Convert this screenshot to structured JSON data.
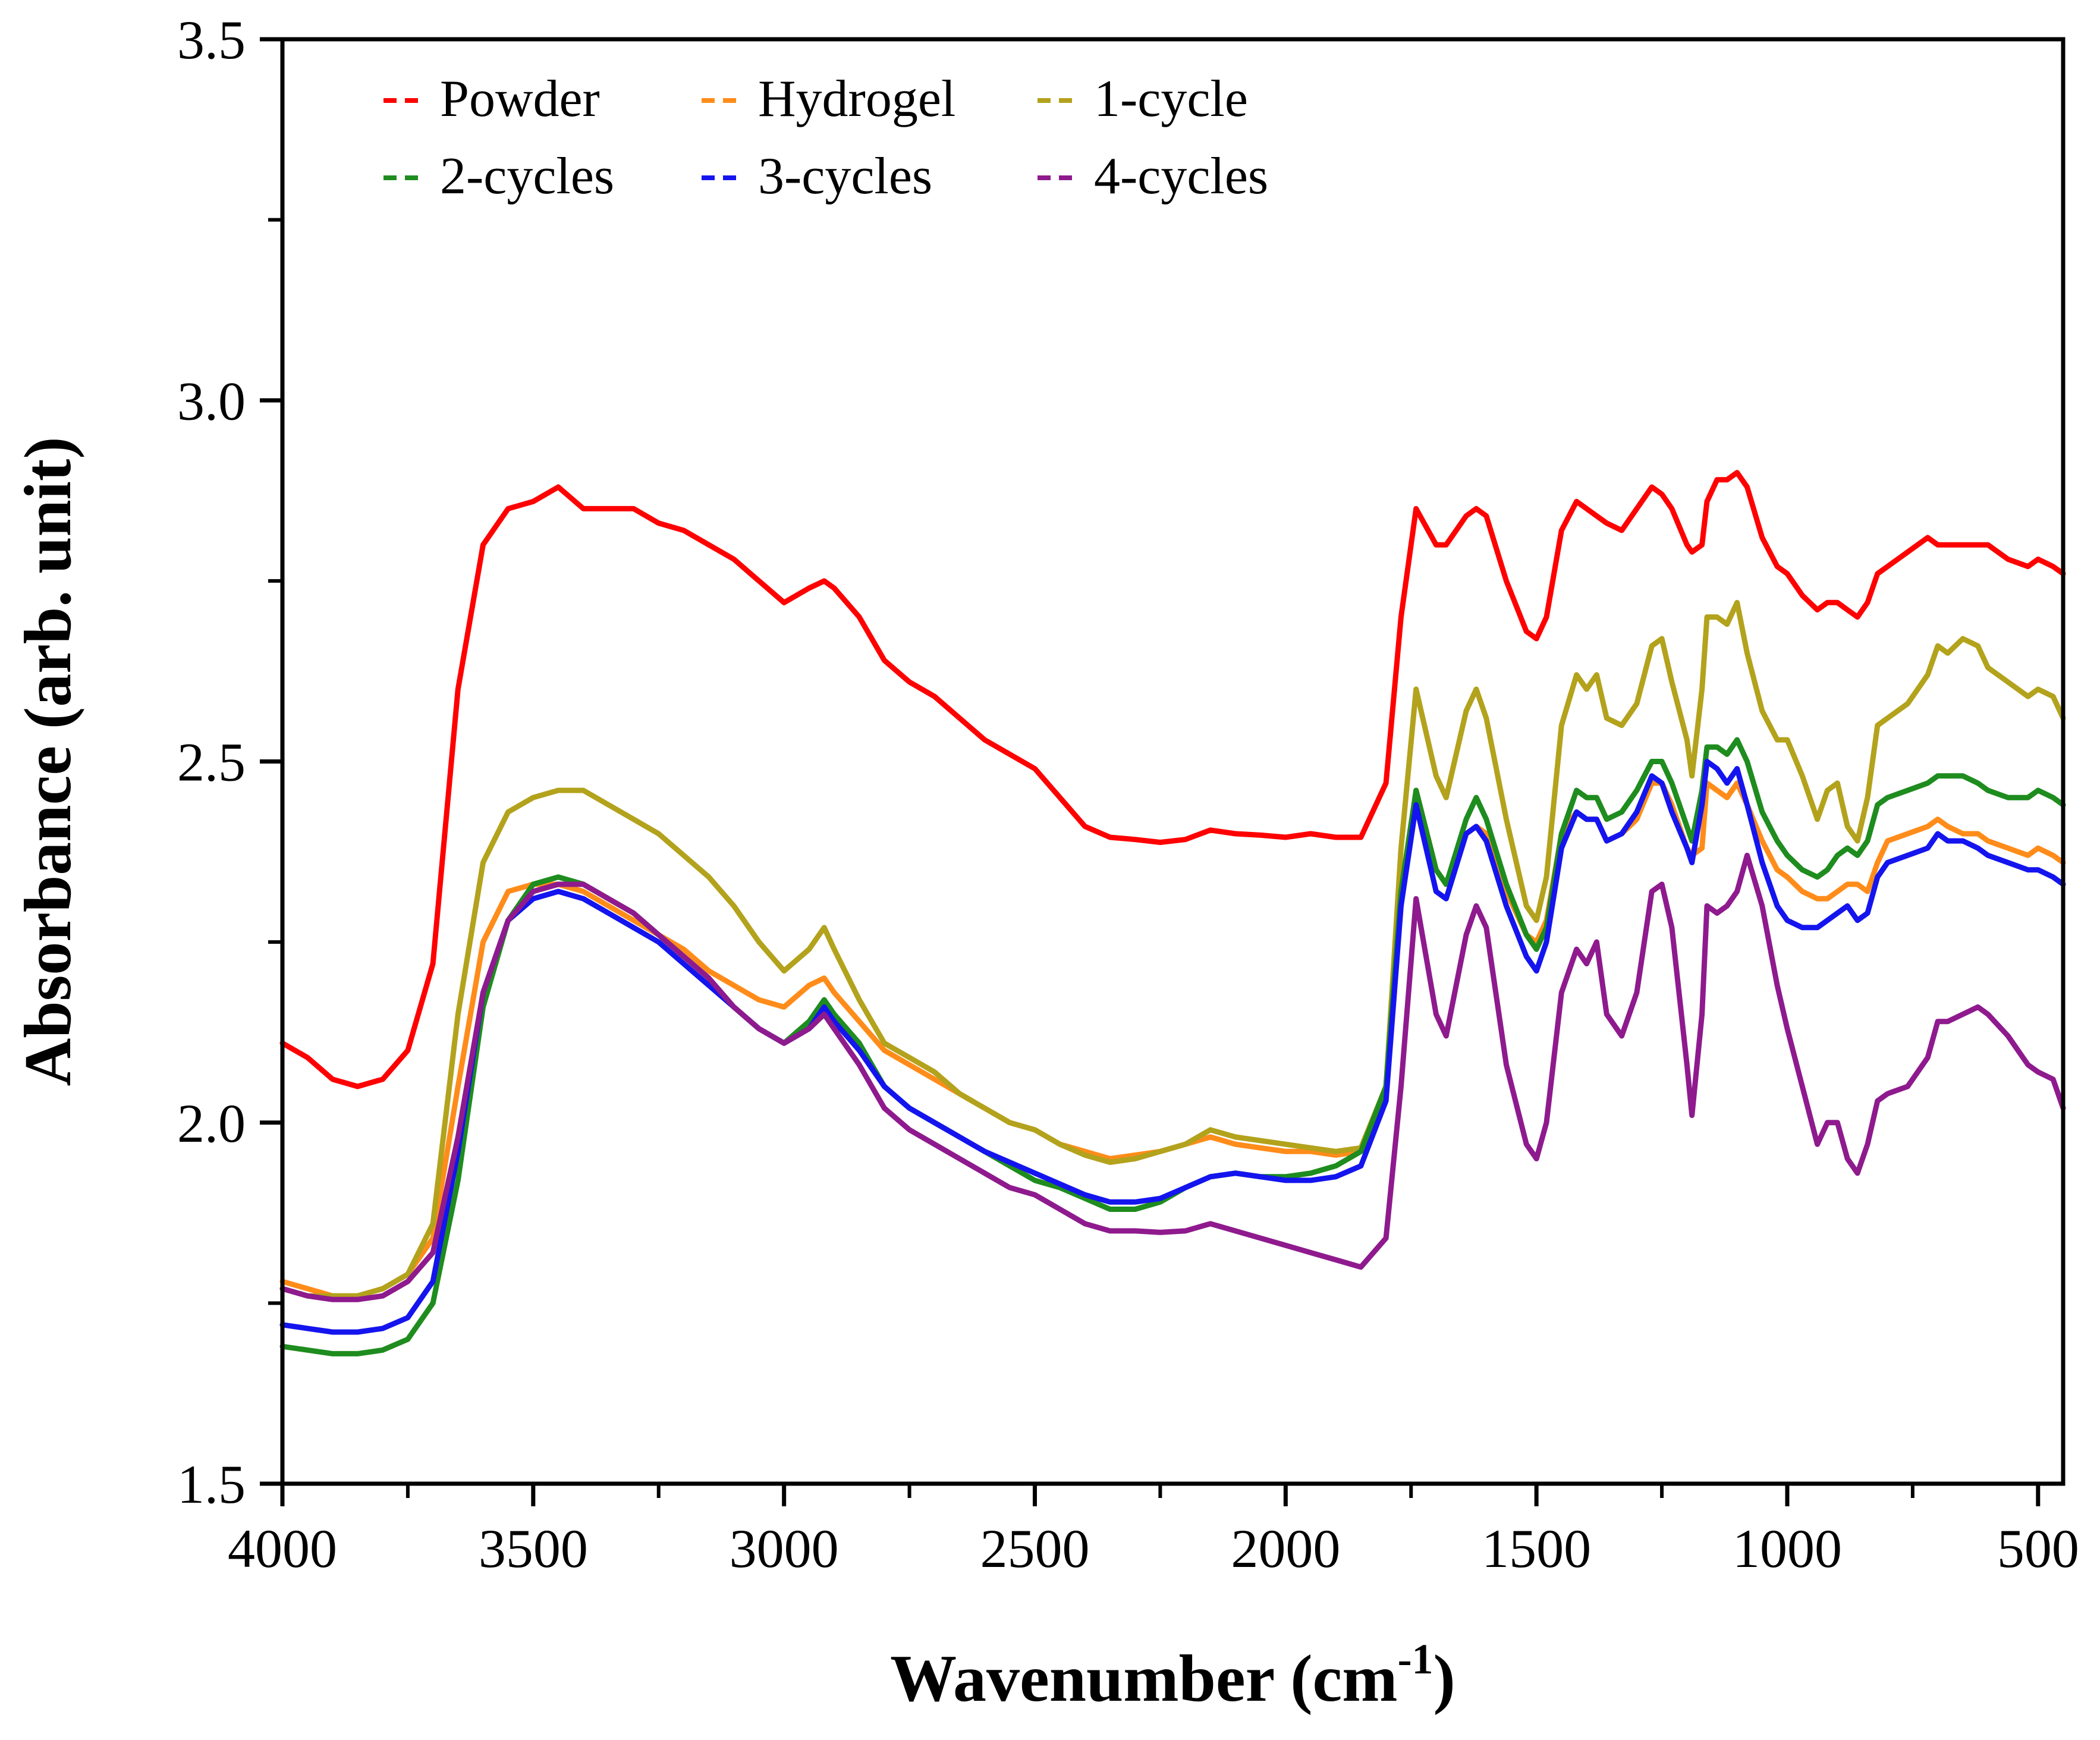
{
  "chart_data": {
    "type": "line",
    "title": "",
    "xlabel": "Wavenumber (cm",
    "xlabel_sup": "-1",
    "xlabel_close": ")",
    "ylabel": "Absorbance (arb. unit)",
    "xlim": [
      4000,
      450
    ],
    "ylim": [
      1.5,
      3.5
    ],
    "x_ticks": [
      4000,
      3500,
      3000,
      2500,
      2000,
      1500,
      1000,
      500
    ],
    "x_tick_labels": [
      "4000",
      "3500",
      "3000",
      "2500",
      "2000",
      "1500",
      "1000",
      "500"
    ],
    "y_ticks": [
      1.5,
      2.0,
      2.5,
      3.0,
      3.5
    ],
    "y_tick_labels": [
      "1.5",
      "2.0",
      "2.5",
      "3.0",
      "3.5"
    ],
    "grid": false,
    "legend_position": "top-left",
    "x": [
      4000,
      3950,
      3900,
      3850,
      3800,
      3750,
      3700,
      3650,
      3600,
      3550,
      3500,
      3450,
      3400,
      3350,
      3300,
      3250,
      3200,
      3150,
      3100,
      3050,
      3000,
      2950,
      2920,
      2900,
      2850,
      2800,
      2750,
      2700,
      2650,
      2600,
      2550,
      2500,
      2450,
      2400,
      2350,
      2300,
      2250,
      2200,
      2150,
      2100,
      2050,
      2000,
      1950,
      1900,
      1850,
      1800,
      1770,
      1740,
      1700,
      1680,
      1640,
      1620,
      1600,
      1560,
      1520,
      1500,
      1480,
      1450,
      1420,
      1400,
      1380,
      1360,
      1330,
      1300,
      1270,
      1250,
      1230,
      1200,
      1190,
      1170,
      1160,
      1140,
      1120,
      1100,
      1080,
      1050,
      1020,
      1000,
      970,
      940,
      920,
      900,
      880,
      860,
      840,
      820,
      800,
      760,
      720,
      700,
      680,
      650,
      620,
      600,
      560,
      520,
      500,
      470,
      450
    ],
    "series": [
      {
        "name": "Powder",
        "color": "#ff0000",
        "values": [
          2.11,
          2.09,
          2.06,
          2.05,
          2.06,
          2.1,
          2.22,
          2.6,
          2.8,
          2.85,
          2.86,
          2.88,
          2.85,
          2.85,
          2.85,
          2.83,
          2.82,
          2.8,
          2.78,
          2.75,
          2.72,
          2.74,
          2.75,
          2.74,
          2.7,
          2.64,
          2.61,
          2.59,
          2.56,
          2.53,
          2.51,
          2.49,
          2.45,
          2.41,
          2.395,
          2.392,
          2.388,
          2.392,
          2.405,
          2.4,
          2.398,
          2.395,
          2.4,
          2.395,
          2.395,
          2.47,
          2.7,
          2.85,
          2.8,
          2.8,
          2.84,
          2.85,
          2.84,
          2.75,
          2.68,
          2.67,
          2.7,
          2.82,
          2.86,
          2.85,
          2.84,
          2.83,
          2.82,
          2.85,
          2.88,
          2.87,
          2.85,
          2.8,
          2.79,
          2.8,
          2.86,
          2.89,
          2.89,
          2.9,
          2.88,
          2.81,
          2.77,
          2.76,
          2.73,
          2.71,
          2.72,
          2.72,
          2.71,
          2.7,
          2.72,
          2.76,
          2.77,
          2.79,
          2.81,
          2.8,
          2.8,
          2.8,
          2.8,
          2.8,
          2.78,
          2.77,
          2.78,
          2.77,
          2.76
        ]
      },
      {
        "name": "Hydrogel",
        "color": "#ff8c1a",
        "values": [
          1.78,
          1.77,
          1.76,
          1.76,
          1.77,
          1.79,
          1.84,
          2.05,
          2.25,
          2.32,
          2.33,
          2.33,
          2.32,
          2.3,
          2.28,
          2.26,
          2.24,
          2.21,
          2.19,
          2.17,
          2.16,
          2.19,
          2.2,
          2.18,
          2.14,
          2.1,
          2.08,
          2.06,
          2.04,
          2.02,
          2.0,
          1.99,
          1.97,
          1.96,
          1.95,
          1.955,
          1.96,
          1.97,
          1.98,
          1.97,
          1.965,
          1.96,
          1.96,
          1.955,
          1.96,
          2.05,
          2.3,
          2.46,
          2.35,
          2.33,
          2.4,
          2.41,
          2.4,
          2.32,
          2.26,
          2.25,
          2.28,
          2.4,
          2.43,
          2.42,
          2.42,
          2.39,
          2.4,
          2.42,
          2.47,
          2.47,
          2.44,
          2.38,
          2.37,
          2.38,
          2.47,
          2.46,
          2.45,
          2.47,
          2.44,
          2.39,
          2.35,
          2.34,
          2.32,
          2.31,
          2.31,
          2.32,
          2.33,
          2.33,
          2.32,
          2.36,
          2.39,
          2.4,
          2.41,
          2.42,
          2.41,
          2.4,
          2.4,
          2.39,
          2.38,
          2.37,
          2.38,
          2.37,
          2.36
        ]
      },
      {
        "name": "1-cycle",
        "color": "#b3a21c",
        "values": [
          1.77,
          1.76,
          1.76,
          1.76,
          1.77,
          1.79,
          1.86,
          2.15,
          2.36,
          2.43,
          2.45,
          2.46,
          2.46,
          2.44,
          2.42,
          2.4,
          2.37,
          2.34,
          2.3,
          2.25,
          2.21,
          2.24,
          2.27,
          2.24,
          2.17,
          2.11,
          2.09,
          2.07,
          2.04,
          2.02,
          2.0,
          1.99,
          1.97,
          1.955,
          1.945,
          1.95,
          1.96,
          1.97,
          1.99,
          1.98,
          1.975,
          1.97,
          1.965,
          1.96,
          1.965,
          2.05,
          2.38,
          2.6,
          2.48,
          2.45,
          2.57,
          2.6,
          2.56,
          2.42,
          2.3,
          2.28,
          2.34,
          2.55,
          2.62,
          2.6,
          2.62,
          2.56,
          2.55,
          2.58,
          2.66,
          2.67,
          2.61,
          2.53,
          2.48,
          2.6,
          2.7,
          2.7,
          2.69,
          2.72,
          2.65,
          2.57,
          2.53,
          2.53,
          2.48,
          2.42,
          2.46,
          2.47,
          2.41,
          2.39,
          2.45,
          2.55,
          2.56,
          2.58,
          2.62,
          2.66,
          2.65,
          2.67,
          2.66,
          2.63,
          2.61,
          2.59,
          2.6,
          2.59,
          2.56
        ]
      },
      {
        "name": "2-cycles",
        "color": "#1e8c1e",
        "values": [
          1.69,
          1.685,
          1.68,
          1.68,
          1.685,
          1.7,
          1.75,
          1.92,
          2.16,
          2.28,
          2.33,
          2.34,
          2.33,
          2.31,
          2.29,
          2.26,
          2.23,
          2.2,
          2.16,
          2.13,
          2.11,
          2.14,
          2.17,
          2.15,
          2.11,
          2.05,
          2.02,
          2.0,
          1.98,
          1.96,
          1.94,
          1.92,
          1.91,
          1.895,
          1.88,
          1.88,
          1.89,
          1.91,
          1.925,
          1.93,
          1.925,
          1.925,
          1.93,
          1.94,
          1.96,
          2.05,
          2.32,
          2.46,
          2.35,
          2.33,
          2.42,
          2.45,
          2.42,
          2.33,
          2.26,
          2.24,
          2.27,
          2.4,
          2.46,
          2.45,
          2.45,
          2.42,
          2.43,
          2.46,
          2.5,
          2.5,
          2.47,
          2.41,
          2.39,
          2.46,
          2.52,
          2.52,
          2.51,
          2.53,
          2.5,
          2.43,
          2.39,
          2.37,
          2.35,
          2.34,
          2.35,
          2.37,
          2.38,
          2.37,
          2.39,
          2.44,
          2.45,
          2.46,
          2.47,
          2.48,
          2.48,
          2.48,
          2.47,
          2.46,
          2.45,
          2.45,
          2.46,
          2.45,
          2.44
        ]
      },
      {
        "name": "3-cycles",
        "color": "#1414ee",
        "values": [
          1.72,
          1.715,
          1.71,
          1.71,
          1.715,
          1.73,
          1.78,
          1.96,
          2.18,
          2.28,
          2.31,
          2.32,
          2.31,
          2.29,
          2.27,
          2.25,
          2.22,
          2.19,
          2.16,
          2.13,
          2.11,
          2.13,
          2.16,
          2.14,
          2.1,
          2.05,
          2.02,
          2.0,
          1.98,
          1.96,
          1.945,
          1.93,
          1.915,
          1.9,
          1.89,
          1.89,
          1.895,
          1.91,
          1.925,
          1.93,
          1.925,
          1.92,
          1.92,
          1.925,
          1.94,
          2.03,
          2.3,
          2.44,
          2.32,
          2.31,
          2.4,
          2.41,
          2.39,
          2.3,
          2.23,
          2.21,
          2.25,
          2.38,
          2.43,
          2.42,
          2.42,
          2.39,
          2.4,
          2.43,
          2.48,
          2.47,
          2.43,
          2.38,
          2.36,
          2.44,
          2.5,
          2.49,
          2.47,
          2.49,
          2.44,
          2.36,
          2.3,
          2.28,
          2.27,
          2.27,
          2.28,
          2.29,
          2.3,
          2.28,
          2.29,
          2.34,
          2.36,
          2.37,
          2.38,
          2.4,
          2.39,
          2.39,
          2.38,
          2.37,
          2.36,
          2.35,
          2.35,
          2.34,
          2.33
        ]
      },
      {
        "name": "4-cycles",
        "color": "#8e1a8e",
        "values": [
          1.77,
          1.76,
          1.755,
          1.755,
          1.76,
          1.78,
          1.82,
          1.98,
          2.18,
          2.28,
          2.32,
          2.33,
          2.33,
          2.31,
          2.29,
          2.26,
          2.23,
          2.2,
          2.16,
          2.13,
          2.11,
          2.13,
          2.15,
          2.13,
          2.08,
          2.02,
          1.99,
          1.97,
          1.95,
          1.93,
          1.91,
          1.9,
          1.88,
          1.86,
          1.85,
          1.85,
          1.848,
          1.85,
          1.86,
          1.85,
          1.84,
          1.83,
          1.82,
          1.81,
          1.8,
          1.84,
          2.05,
          2.31,
          2.15,
          2.12,
          2.26,
          2.3,
          2.27,
          2.08,
          1.97,
          1.95,
          2.0,
          2.18,
          2.24,
          2.22,
          2.25,
          2.15,
          2.12,
          2.18,
          2.32,
          2.33,
          2.27,
          2.08,
          2.01,
          2.15,
          2.3,
          2.29,
          2.3,
          2.32,
          2.37,
          2.3,
          2.19,
          2.13,
          2.05,
          1.97,
          2.0,
          2.0,
          1.95,
          1.93,
          1.97,
          2.03,
          2.04,
          2.05,
          2.09,
          2.14,
          2.14,
          2.15,
          2.16,
          2.15,
          2.12,
          2.08,
          2.07,
          2.06,
          2.02
        ]
      }
    ]
  }
}
